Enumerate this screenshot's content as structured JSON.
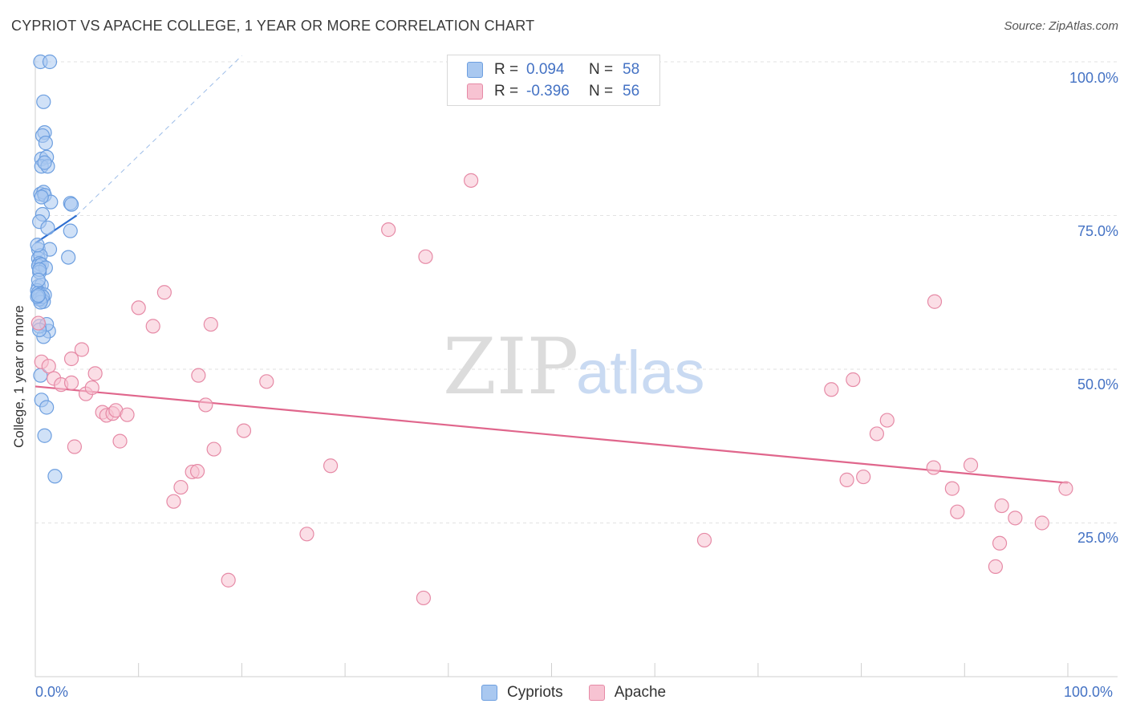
{
  "title": "CYPRIOT VS APACHE COLLEGE, 1 YEAR OR MORE CORRELATION CHART",
  "source": "Source: ZipAtlas.com",
  "watermark": {
    "zip": "ZIP",
    "atlas": "atlas"
  },
  "legend_top": {
    "rows": [
      {
        "r_label": "R =",
        "r_value": "0.094",
        "n_label": "N =",
        "n_value": "58",
        "color": "#a9c8f0",
        "border": "#6d9fe0"
      },
      {
        "r_label": "R =",
        "r_value": "-0.396",
        "n_label": "N =",
        "n_value": "56",
        "color": "#f7c3d2",
        "border": "#e68aa6"
      }
    ]
  },
  "legend_bottom": [
    {
      "label": "Cypriots",
      "color": "#a9c8f0",
      "border": "#6d9fe0"
    },
    {
      "label": "Apache",
      "color": "#f7c3d2",
      "border": "#e68aa6"
    }
  ],
  "chart_data": {
    "type": "scatter",
    "title": "CYPRIOT VS APACHE COLLEGE, 1 YEAR OR MORE CORRELATION CHART",
    "xlabel": "",
    "ylabel": "College, 1 year or more",
    "xlim": [
      0,
      100
    ],
    "ylim": [
      0,
      102
    ],
    "x_tick_labels": {
      "left": "0.0%",
      "right": "100.0%"
    },
    "y_tick_labels": [
      "100.0%",
      "75.0%",
      "50.0%",
      "25.0%"
    ],
    "y_tick_values": [
      100,
      75,
      50,
      25
    ],
    "grid": true,
    "legend": "top-center",
    "series": [
      {
        "name": "Cypriots",
        "color": "#6d9fe0",
        "fill": "#a9c8f0",
        "trend": {
          "x": [
            0,
            4
          ],
          "y": [
            70.5,
            75
          ],
          "extended_to": [
            20,
            101
          ],
          "color": "#2e6fd1"
        },
        "points": [
          [
            0.5,
            100
          ],
          [
            1.4,
            100
          ],
          [
            0.8,
            93.5
          ],
          [
            0.9,
            88.5
          ],
          [
            0.7,
            88
          ],
          [
            1.0,
            86.8
          ],
          [
            0.6,
            84.2
          ],
          [
            1.1,
            84.5
          ],
          [
            0.6,
            83
          ],
          [
            1.2,
            83
          ],
          [
            0.5,
            78.5
          ],
          [
            0.8,
            78.8
          ],
          [
            0.9,
            78.3
          ],
          [
            1.5,
            77.2
          ],
          [
            3.4,
            77
          ],
          [
            3.5,
            76.8
          ],
          [
            0.7,
            75.2
          ],
          [
            0.4,
            74
          ],
          [
            1.2,
            73
          ],
          [
            3.4,
            72.5
          ],
          [
            0.3,
            69.5
          ],
          [
            1.4,
            69.5
          ],
          [
            0.3,
            68
          ],
          [
            0.5,
            68.5
          ],
          [
            0.4,
            67.2
          ],
          [
            0.3,
            66.8
          ],
          [
            0.6,
            67
          ],
          [
            1.0,
            66.5
          ],
          [
            3.2,
            68.2
          ],
          [
            0.4,
            65.8
          ],
          [
            0.3,
            63.5
          ],
          [
            0.6,
            63.7
          ],
          [
            0.2,
            62.8
          ],
          [
            0.3,
            62.4
          ],
          [
            0.5,
            62.2
          ],
          [
            0.9,
            62.1
          ],
          [
            0.6,
            61.3
          ],
          [
            0.8,
            61.0
          ],
          [
            0.4,
            61.4
          ],
          [
            1.3,
            56.2
          ],
          [
            0.8,
            55.3
          ],
          [
            0.5,
            49
          ],
          [
            0.6,
            45
          ],
          [
            1.1,
            43.8
          ],
          [
            0.9,
            39.2
          ],
          [
            1.9,
            32.6
          ],
          [
            0.4,
            57.0
          ],
          [
            0.2,
            70.2
          ],
          [
            0.4,
            66.2
          ],
          [
            0.7,
            61.8
          ],
          [
            0.5,
            60.9
          ],
          [
            0.3,
            64.5
          ],
          [
            0.2,
            61.8
          ],
          [
            0.6,
            78.0
          ],
          [
            1.1,
            57.3
          ],
          [
            0.4,
            56.4
          ],
          [
            0.9,
            83.6
          ],
          [
            0.3,
            62.0
          ]
        ]
      },
      {
        "name": "Apache",
        "color": "#e68aa6",
        "fill": "#f7c3d2",
        "trend": {
          "x": [
            0,
            100
          ],
          "y": [
            47.2,
            31.5
          ],
          "color": "#e0668c"
        },
        "points": [
          [
            0.3,
            57.5
          ],
          [
            0.6,
            51.2
          ],
          [
            1.3,
            50.5
          ],
          [
            1.8,
            48.5
          ],
          [
            2.5,
            47.5
          ],
          [
            3.5,
            47.8
          ],
          [
            3.5,
            51.7
          ],
          [
            4.5,
            53.2
          ],
          [
            4.9,
            46
          ],
          [
            5.5,
            47
          ],
          [
            5.8,
            49.3
          ],
          [
            6.5,
            43
          ],
          [
            6.9,
            42.5
          ],
          [
            7.5,
            42.8
          ],
          [
            7.8,
            43.3
          ],
          [
            8.2,
            38.3
          ],
          [
            8.9,
            42.6
          ],
          [
            10,
            60
          ],
          [
            11.4,
            57
          ],
          [
            12.5,
            62.5
          ],
          [
            13.4,
            28.5
          ],
          [
            14.1,
            30.8
          ],
          [
            15.2,
            33.3
          ],
          [
            15.7,
            33.4
          ],
          [
            15.8,
            49
          ],
          [
            16.5,
            44.2
          ],
          [
            17,
            57.3
          ],
          [
            17.3,
            37
          ],
          [
            18.7,
            15.7
          ],
          [
            20.2,
            40
          ],
          [
            22.4,
            48
          ],
          [
            26.3,
            23.2
          ],
          [
            28.6,
            34.3
          ],
          [
            34.2,
            72.7
          ],
          [
            37.6,
            12.8
          ],
          [
            37.8,
            68.3
          ],
          [
            42.2,
            80.7
          ],
          [
            3.8,
            37.4
          ],
          [
            64.8,
            22.2
          ],
          [
            77.1,
            46.7
          ],
          [
            78.6,
            32
          ],
          [
            79.2,
            48.3
          ],
          [
            80.2,
            32.5
          ],
          [
            81.5,
            39.5
          ],
          [
            82.5,
            41.7
          ],
          [
            87.1,
            61
          ],
          [
            87.0,
            34
          ],
          [
            88.8,
            30.6
          ],
          [
            89.3,
            26.8
          ],
          [
            90.6,
            34.4
          ],
          [
            93.0,
            17.9
          ],
          [
            93.4,
            21.7
          ],
          [
            93.6,
            27.8
          ],
          [
            94.9,
            25.8
          ],
          [
            97.5,
            25
          ],
          [
            99.8,
            30.6
          ]
        ]
      }
    ]
  }
}
